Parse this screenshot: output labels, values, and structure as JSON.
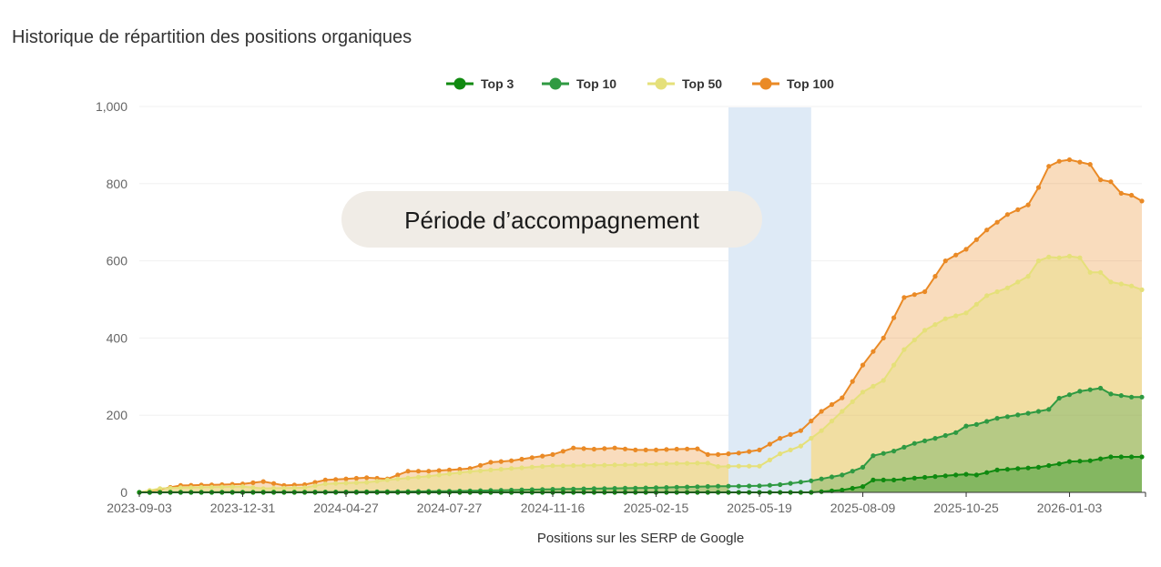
{
  "page_title": "Historique de répartition des positions organiques",
  "chart_data": {
    "type": "area",
    "stacked": true,
    "title": "Historique de répartition des positions organiques",
    "xlabel": "Positions sur les SERP de Google",
    "ylabel": "",
    "ylim": [
      0,
      1000
    ],
    "yticks": [
      0,
      200,
      400,
      600,
      800,
      1000
    ],
    "ytick_labels": [
      "0",
      "200",
      "400",
      "600",
      "800",
      "1,000"
    ],
    "xtick_labels": [
      "2023-09-03",
      "2023-12-31",
      "2024-04-27",
      "2024-07-27",
      "2024-11-16",
      "2025-02-15",
      "2025-05-19",
      "2025-08-09",
      "2025-10-25",
      "2026-01-03"
    ],
    "xtick_positions": [
      0,
      10,
      20,
      30,
      40,
      50,
      60,
      70,
      80,
      90
    ],
    "x_count": 98,
    "legend_position": "top-center",
    "colors": {
      "top3": "#108a10",
      "top10": "#2f9a42",
      "top50": "#e5e07a",
      "top100": "#ea8a26",
      "highlight": "#dce9f6",
      "grid": "#f0f0f0"
    },
    "series": [
      {
        "name": "Top 3",
        "key": "top3",
        "anchors": [
          [
            0,
            0
          ],
          [
            20,
            0
          ],
          [
            40,
            0
          ],
          [
            55,
            0
          ],
          [
            65,
            0
          ],
          [
            68,
            6
          ],
          [
            70,
            15
          ],
          [
            71,
            32
          ],
          [
            73,
            32
          ],
          [
            75,
            37
          ],
          [
            78,
            43
          ],
          [
            80,
            47
          ],
          [
            81,
            45
          ],
          [
            83,
            58
          ],
          [
            87,
            65
          ],
          [
            89,
            74
          ],
          [
            90,
            80
          ],
          [
            92,
            82
          ],
          [
            94,
            92
          ],
          [
            97,
            92
          ]
        ]
      },
      {
        "name": "Top 10",
        "key": "top10",
        "anchors": [
          [
            0,
            0
          ],
          [
            20,
            1
          ],
          [
            30,
            3
          ],
          [
            40,
            8
          ],
          [
            50,
            12
          ],
          [
            56,
            16
          ],
          [
            58,
            16
          ],
          [
            60,
            17
          ],
          [
            62,
            20
          ],
          [
            65,
            30
          ],
          [
            68,
            45
          ],
          [
            70,
            65
          ],
          [
            71,
            95
          ],
          [
            73,
            107
          ],
          [
            75,
            127
          ],
          [
            77,
            140
          ],
          [
            79,
            155
          ],
          [
            80,
            172
          ],
          [
            81,
            176
          ],
          [
            83,
            192
          ],
          [
            86,
            205
          ],
          [
            88,
            215
          ],
          [
            89,
            244
          ],
          [
            91,
            262
          ],
          [
            93,
            270
          ],
          [
            94,
            255
          ],
          [
            96,
            247
          ],
          [
            97,
            247
          ]
        ]
      },
      {
        "name": "Top 50",
        "key": "top50",
        "anchors": [
          [
            0,
            0
          ],
          [
            2,
            10
          ],
          [
            4,
            12
          ],
          [
            8,
            14
          ],
          [
            10,
            15
          ],
          [
            12,
            10
          ],
          [
            16,
            12
          ],
          [
            18,
            22
          ],
          [
            22,
            26
          ],
          [
            25,
            35
          ],
          [
            28,
            42
          ],
          [
            32,
            54
          ],
          [
            36,
            62
          ],
          [
            40,
            69
          ],
          [
            44,
            70
          ],
          [
            48,
            72
          ],
          [
            52,
            75
          ],
          [
            55,
            76
          ],
          [
            56,
            67
          ],
          [
            58,
            68
          ],
          [
            60,
            68
          ],
          [
            62,
            100
          ],
          [
            64,
            120
          ],
          [
            66,
            160
          ],
          [
            68,
            210
          ],
          [
            70,
            260
          ],
          [
            72,
            290
          ],
          [
            74,
            370
          ],
          [
            76,
            420
          ],
          [
            78,
            450
          ],
          [
            80,
            465
          ],
          [
            82,
            510
          ],
          [
            84,
            530
          ],
          [
            86,
            560
          ],
          [
            87,
            600
          ],
          [
            88,
            610
          ],
          [
            89,
            608
          ],
          [
            90,
            612
          ],
          [
            91,
            608
          ],
          [
            92,
            570
          ],
          [
            93,
            570
          ],
          [
            94,
            545
          ],
          [
            96,
            535
          ],
          [
            97,
            525
          ]
        ]
      },
      {
        "name": "Top 100",
        "key": "top100",
        "anchors": [
          [
            0,
            0
          ],
          [
            2,
            8
          ],
          [
            4,
            18
          ],
          [
            8,
            20
          ],
          [
            10,
            22
          ],
          [
            12,
            28
          ],
          [
            14,
            18
          ],
          [
            16,
            20
          ],
          [
            18,
            32
          ],
          [
            20,
            35
          ],
          [
            22,
            38
          ],
          [
            24,
            35
          ],
          [
            26,
            55
          ],
          [
            28,
            55
          ],
          [
            30,
            58
          ],
          [
            32,
            62
          ],
          [
            34,
            78
          ],
          [
            36,
            82
          ],
          [
            38,
            90
          ],
          [
            40,
            98
          ],
          [
            42,
            115
          ],
          [
            44,
            112
          ],
          [
            46,
            115
          ],
          [
            48,
            110
          ],
          [
            50,
            110
          ],
          [
            52,
            112
          ],
          [
            54,
            113
          ],
          [
            55,
            98
          ],
          [
            56,
            98
          ],
          [
            58,
            102
          ],
          [
            60,
            110
          ],
          [
            62,
            140
          ],
          [
            64,
            160
          ],
          [
            66,
            210
          ],
          [
            68,
            245
          ],
          [
            70,
            330
          ],
          [
            72,
            400
          ],
          [
            74,
            505
          ],
          [
            76,
            520
          ],
          [
            78,
            600
          ],
          [
            80,
            630
          ],
          [
            82,
            680
          ],
          [
            84,
            720
          ],
          [
            86,
            745
          ],
          [
            87,
            790
          ],
          [
            88,
            845
          ],
          [
            89,
            858
          ],
          [
            90,
            862
          ],
          [
            92,
            850
          ],
          [
            93,
            810
          ],
          [
            94,
            805
          ],
          [
            95,
            775
          ],
          [
            96,
            770
          ],
          [
            97,
            755
          ]
        ]
      }
    ],
    "highlight": {
      "x_start": 57,
      "x_end": 65
    },
    "annotation": {
      "text": "Période d’accompagnement"
    }
  }
}
